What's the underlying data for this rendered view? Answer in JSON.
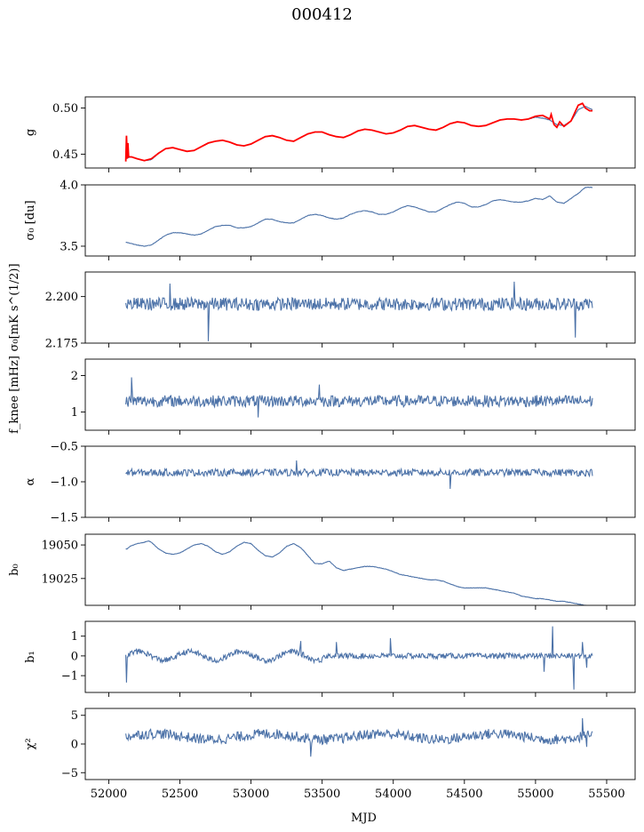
{
  "figure": {
    "title": "000412"
  },
  "chart_data": [
    {
      "type": "line",
      "ylabel": "g",
      "ylim": [
        0.435,
        0.512
      ],
      "yticks": [
        0.45,
        0.5
      ],
      "ytick_labels": [
        "0.45",
        "0.50"
      ],
      "series": [
        {
          "color": "#4c72a8",
          "kind": "smooth",
          "x": [
            52130,
            52160,
            52200,
            52250,
            52300,
            52350,
            52400,
            52450,
            52500,
            52550,
            52600,
            52650,
            52700,
            52750,
            52800,
            52850,
            52900,
            52950,
            53000,
            53050,
            53100,
            53150,
            53200,
            53250,
            53300,
            53350,
            53400,
            53450,
            53500,
            53550,
            53600,
            53650,
            53700,
            53750,
            53800,
            53850,
            53900,
            53950,
            54000,
            54050,
            54100,
            54150,
            54200,
            54250,
            54300,
            54350,
            54400,
            54450,
            54500,
            54550,
            54600,
            54650,
            54700,
            54750,
            54800,
            54850,
            54900,
            54950,
            55000,
            55050,
            55100,
            55150,
            55200,
            55250,
            55300,
            55350,
            55400
          ],
          "y": [
            0.446,
            0.447,
            0.445,
            0.443,
            0.444,
            0.451,
            0.456,
            0.457,
            0.455,
            0.453,
            0.454,
            0.458,
            0.462,
            0.464,
            0.465,
            0.463,
            0.46,
            0.459,
            0.461,
            0.465,
            0.469,
            0.47,
            0.468,
            0.465,
            0.464,
            0.468,
            0.472,
            0.474,
            0.474,
            0.471,
            0.469,
            0.468,
            0.471,
            0.475,
            0.477,
            0.476,
            0.474,
            0.472,
            0.473,
            0.476,
            0.48,
            0.481,
            0.479,
            0.477,
            0.476,
            0.479,
            0.483,
            0.485,
            0.484,
            0.481,
            0.48,
            0.481,
            0.484,
            0.487,
            0.488,
            0.488,
            0.487,
            0.488,
            0.49,
            0.489,
            0.487,
            0.482,
            0.481,
            0.486,
            0.498,
            0.502,
            0.498
          ]
        },
        {
          "color": "#ff0000",
          "kind": "raw",
          "x": [
            52120,
            52125,
            52130,
            52135,
            52140,
            52160,
            52200,
            52250,
            52300,
            52350,
            52400,
            52450,
            52500,
            52550,
            52600,
            52650,
            52700,
            52750,
            52800,
            52850,
            52900,
            52950,
            53000,
            53050,
            53100,
            53150,
            53200,
            53250,
            53300,
            53350,
            53400,
            53450,
            53500,
            53550,
            53600,
            53650,
            53700,
            53750,
            53800,
            53850,
            53900,
            53950,
            54000,
            54050,
            54100,
            54150,
            54200,
            54250,
            54300,
            54350,
            54400,
            54450,
            54500,
            54550,
            54600,
            54650,
            54700,
            54750,
            54800,
            54850,
            54900,
            54950,
            55000,
            55050,
            55100,
            55110,
            55130,
            55150,
            55170,
            55200,
            55250,
            55300,
            55330,
            55350,
            55380,
            55400
          ],
          "y": [
            0.442,
            0.47,
            0.445,
            0.462,
            0.447,
            0.447,
            0.445,
            0.443,
            0.445,
            0.451,
            0.456,
            0.457,
            0.455,
            0.453,
            0.454,
            0.458,
            0.462,
            0.464,
            0.465,
            0.463,
            0.46,
            0.459,
            0.461,
            0.465,
            0.469,
            0.47,
            0.468,
            0.465,
            0.464,
            0.468,
            0.472,
            0.474,
            0.474,
            0.471,
            0.469,
            0.468,
            0.471,
            0.475,
            0.477,
            0.476,
            0.474,
            0.472,
            0.473,
            0.476,
            0.48,
            0.481,
            0.479,
            0.477,
            0.476,
            0.479,
            0.483,
            0.485,
            0.484,
            0.481,
            0.48,
            0.481,
            0.484,
            0.487,
            0.488,
            0.488,
            0.487,
            0.488,
            0.491,
            0.492,
            0.488,
            0.493,
            0.482,
            0.479,
            0.485,
            0.48,
            0.486,
            0.503,
            0.505,
            0.5,
            0.497,
            0.497
          ]
        }
      ]
    },
    {
      "type": "line",
      "ylabel": "σ₀ [du]",
      "ylim": [
        3.42,
        4.0
      ],
      "yticks": [
        3.5,
        4.0
      ],
      "ytick_labels": [
        "3.5",
        "4.0"
      ],
      "series": [
        {
          "color": "#4c72a8",
          "kind": "smooth",
          "x": [
            52130,
            52200,
            52250,
            52300,
            52350,
            52400,
            52450,
            52500,
            52550,
            52600,
            52650,
            52700,
            52750,
            52800,
            52850,
            52900,
            52950,
            53000,
            53050,
            53100,
            53150,
            53200,
            53250,
            53300,
            53350,
            53400,
            53450,
            53500,
            53550,
            53600,
            53650,
            53700,
            53750,
            53800,
            53850,
            53900,
            53950,
            54000,
            54050,
            54100,
            54150,
            54200,
            54250,
            54300,
            54350,
            54400,
            54450,
            54500,
            54550,
            54600,
            54650,
            54700,
            54750,
            54800,
            54850,
            54900,
            54950,
            55000,
            55050,
            55100,
            55150,
            55200,
            55250,
            55300,
            55350,
            55400
          ],
          "y": [
            3.53,
            3.51,
            3.5,
            3.51,
            3.55,
            3.59,
            3.61,
            3.61,
            3.6,
            3.59,
            3.6,
            3.63,
            3.66,
            3.67,
            3.67,
            3.65,
            3.65,
            3.66,
            3.69,
            3.72,
            3.72,
            3.7,
            3.69,
            3.69,
            3.72,
            3.75,
            3.76,
            3.75,
            3.73,
            3.72,
            3.73,
            3.76,
            3.78,
            3.79,
            3.78,
            3.76,
            3.76,
            3.78,
            3.81,
            3.83,
            3.82,
            3.8,
            3.78,
            3.78,
            3.81,
            3.84,
            3.86,
            3.85,
            3.82,
            3.82,
            3.84,
            3.87,
            3.88,
            3.87,
            3.86,
            3.86,
            3.87,
            3.89,
            3.88,
            3.91,
            3.86,
            3.85,
            3.89,
            3.93,
            3.98,
            3.98
          ]
        }
      ]
    },
    {
      "type": "line",
      "ylabel": "σ₀[mK s^(1/2)]",
      "ylim": [
        2.175,
        2.2132
      ],
      "yticks": [
        2.175,
        2.2
      ],
      "ytick_labels": [
        "2.175",
        "2.200"
      ],
      "series": [
        {
          "color": "#4c72a8",
          "kind": "noise",
          "mean": 2.196,
          "amp": 0.0035,
          "spikes": [
            [
              52430,
              2.207
            ],
            [
              52700,
              2.176
            ],
            [
              54850,
              2.208
            ],
            [
              55280,
              2.178
            ]
          ]
        }
      ]
    },
    {
      "type": "line",
      "ylabel": "f_knee [mHz]",
      "ylim": [
        0.5,
        2.45
      ],
      "yticks": [
        1,
        2
      ],
      "ytick_labels": [
        "1",
        "2"
      ],
      "series": [
        {
          "color": "#4c72a8",
          "kind": "noise",
          "mean": 1.3,
          "amp": 0.16,
          "spikes": [
            [
              52160,
              1.95
            ],
            [
              53480,
              1.75
            ],
            [
              53050,
              0.85
            ]
          ]
        }
      ]
    },
    {
      "type": "line",
      "ylabel": "α",
      "ylim": [
        -1.5,
        -0.5
      ],
      "yticks": [
        -1.5,
        -1.0,
        -0.5
      ],
      "ytick_labels": [
        "−1.5",
        "−1.0",
        "−0.5"
      ],
      "series": [
        {
          "color": "#4c72a8",
          "kind": "noise",
          "mean": -0.87,
          "amp": 0.05,
          "spikes": [
            [
              53320,
              -0.7
            ],
            [
              54400,
              -1.1
            ]
          ]
        }
      ]
    },
    {
      "type": "line",
      "ylabel": "b₀",
      "ylim": [
        19005,
        19058
      ],
      "yticks": [
        19025,
        19050
      ],
      "ytick_labels": [
        "19025",
        "19050"
      ],
      "series": [
        {
          "color": "#4c72a8",
          "kind": "smooth",
          "x": [
            52130,
            52150,
            52200,
            52250,
            52280,
            52300,
            52350,
            52400,
            52450,
            52500,
            52550,
            52600,
            52650,
            52700,
            52750,
            52800,
            52850,
            52900,
            52950,
            53000,
            53050,
            53100,
            53150,
            53200,
            53250,
            53300,
            53350,
            53400,
            53450,
            53500,
            53550,
            53600,
            53650,
            53700,
            53750,
            53800,
            53850,
            53900,
            53950,
            54000,
            54050,
            54100,
            54150,
            54200,
            54250,
            54300,
            54350,
            54400,
            54450,
            54500,
            54550,
            54600,
            54650,
            54700,
            54750,
            54800,
            54850,
            54900,
            54950,
            55000,
            55050,
            55100,
            55150,
            55200,
            55250,
            55300,
            55350,
            55380,
            55400
          ],
          "y": [
            19047,
            19049,
            19051,
            19052,
            19053,
            19052,
            19047,
            19044,
            19043,
            19044,
            19047,
            19050,
            19051,
            19049,
            19045,
            19043,
            19045,
            19049,
            19052,
            19051,
            19046,
            19042,
            19041,
            19044,
            19049,
            19051,
            19048,
            19042,
            19036,
            19036,
            19038,
            19033,
            19031,
            19032,
            19033,
            19034,
            19034,
            19033,
            19032,
            19030,
            19028,
            19027,
            19026,
            19025,
            19024,
            19024,
            19023,
            19021,
            19019,
            19018,
            19018,
            19018,
            19018,
            19017,
            19016,
            19015,
            19014,
            19012,
            19011,
            19010,
            19010,
            19009,
            19008,
            19008,
            19007,
            19006,
            19005,
            19004,
            19003
          ]
        }
      ]
    },
    {
      "type": "line",
      "ylabel": "b₁",
      "ylim": [
        -1.85,
        1.75
      ],
      "yticks": [
        -1,
        0,
        1
      ],
      "ytick_labels": [
        "−1",
        "0",
        "1"
      ],
      "series": [
        {
          "color": "#4c72a8",
          "kind": "wave",
          "amp": 0.14,
          "wave_amp": 0.22,
          "wave_period": 360,
          "wave_end": 53500,
          "spikes": [
            [
              52125,
              -1.35
            ],
            [
              52140,
              0.15
            ],
            [
              53350,
              0.75
            ],
            [
              53600,
              0.7
            ],
            [
              53980,
              0.9
            ],
            [
              55120,
              1.5
            ],
            [
              55270,
              -1.7
            ],
            [
              55330,
              0.7
            ],
            [
              55360,
              -0.6
            ],
            [
              55060,
              -0.8
            ]
          ]
        }
      ]
    },
    {
      "type": "line",
      "ylabel": "χ²",
      "ylim": [
        -6.2,
        6.2
      ],
      "yticks": [
        -5,
        0,
        5
      ],
      "ytick_labels": [
        "−5",
        "0",
        "5"
      ],
      "series": [
        {
          "color": "#4c72a8",
          "kind": "wave",
          "amp": 0.9,
          "wave_amp": 0.5,
          "wave_period": 800,
          "wave_end": 55400,
          "offset": 1.3,
          "spikes": [
            [
              53420,
              -2.2
            ],
            [
              55330,
              4.5
            ],
            [
              55360,
              -0.5
            ]
          ]
        }
      ]
    }
  ],
  "xaxis": {
    "label": "MJD",
    "xlim": [
      51835,
      55700
    ],
    "ticks": [
      52000,
      52500,
      53000,
      53500,
      54000,
      54500,
      55000,
      55500
    ],
    "tick_labels": [
      "52000",
      "52500",
      "53000",
      "53500",
      "54000",
      "54500",
      "55000",
      "55500"
    ],
    "data_start": 52120,
    "data_end": 55400
  }
}
